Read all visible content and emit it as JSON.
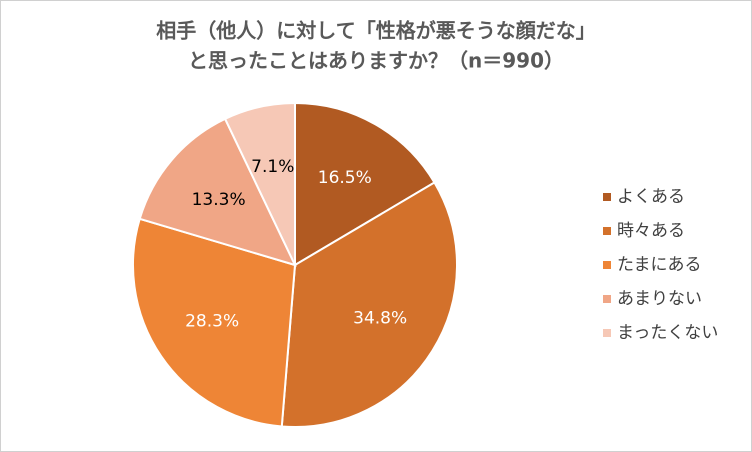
{
  "chart_data": {
    "type": "pie",
    "title": [
      "相手（他人）に対して「性格が悪そうな顔だな」",
      "と思ったことはありますか？（n＝990）"
    ],
    "categories": [
      "よくある",
      "時々ある",
      "たまにある",
      "あまりない",
      "まったくない"
    ],
    "values": [
      16.5,
      34.8,
      28.3,
      13.3,
      7.1
    ],
    "value_labels": [
      "16.5%",
      "34.8%",
      "28.3%",
      "13.3%",
      "7.1%"
    ],
    "colors": [
      "#b15a22",
      "#d3712b",
      "#ee8536",
      "#f0a686",
      "#f6c8b6"
    ],
    "legend": "right"
  }
}
